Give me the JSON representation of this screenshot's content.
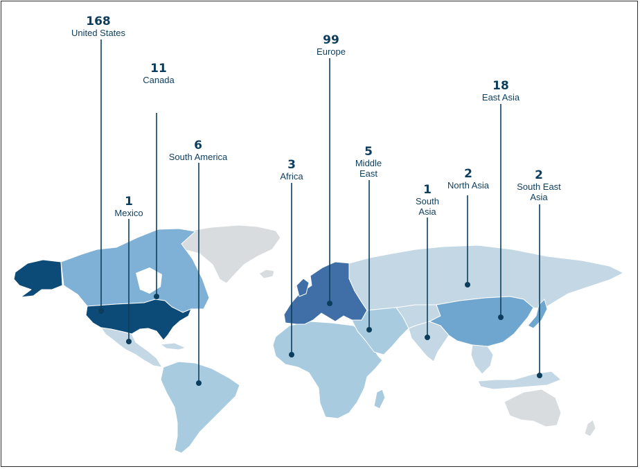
{
  "colors": {
    "united_states": "#0c4a78",
    "europe": "#3f6fa6",
    "east_asia": "#6ea6cf",
    "north_america_other": "#7fb0d6",
    "low_count": "#a9cbe0",
    "very_low_count": "#c3d7e4",
    "no_data": "#d9dcde",
    "leader": "#0d3d5c"
  },
  "regions": [
    {
      "id": "united-states",
      "count": "168",
      "label": "United States"
    },
    {
      "id": "canada",
      "count": "11",
      "label": "Canada"
    },
    {
      "id": "mexico",
      "count": "1",
      "label": "Mexico"
    },
    {
      "id": "south-america",
      "count": "6",
      "label": "South America"
    },
    {
      "id": "africa",
      "count": "3",
      "label": "Africa"
    },
    {
      "id": "europe",
      "count": "99",
      "label": "Europe"
    },
    {
      "id": "middle-east",
      "count": "5",
      "label": "Middle East",
      "label_lines": [
        "Middle",
        "East"
      ]
    },
    {
      "id": "south-asia",
      "count": "1",
      "label": "South Asia",
      "label_lines": [
        "South",
        "Asia"
      ]
    },
    {
      "id": "north-asia",
      "count": "2",
      "label": "North Asia"
    },
    {
      "id": "east-asia",
      "count": "18",
      "label": "East Asia"
    },
    {
      "id": "south-east-asia",
      "count": "2",
      "label": "South East Asia",
      "label_lines": [
        "South East",
        "Asia"
      ]
    }
  ]
}
